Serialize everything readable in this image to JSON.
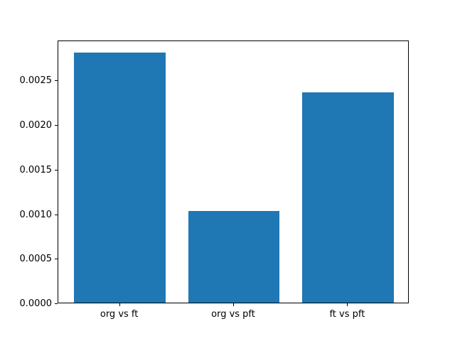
{
  "figure": {
    "background": "#ffffff"
  },
  "chart_data": {
    "type": "bar",
    "title": "",
    "xlabel": "",
    "ylabel": "",
    "categories": [
      "org vs ft",
      "org vs pft",
      "ft vs pft"
    ],
    "values": [
      0.00281,
      0.00103,
      0.00236
    ],
    "bar_color": "#1f77b4",
    "bar_width": 0.8,
    "xlim": [
      -0.54,
      2.54
    ],
    "ylim": [
      0,
      0.00295
    ],
    "yticks": [
      0,
      0.0005,
      0.001,
      0.0015,
      0.002,
      0.0025
    ],
    "ytick_labels": [
      "0.0000",
      "0.0005",
      "0.0010",
      "0.0015",
      "0.0020",
      "0.0025"
    ],
    "grid": false,
    "legend": null,
    "spine_color": "#000000",
    "text_color": "#000000"
  }
}
